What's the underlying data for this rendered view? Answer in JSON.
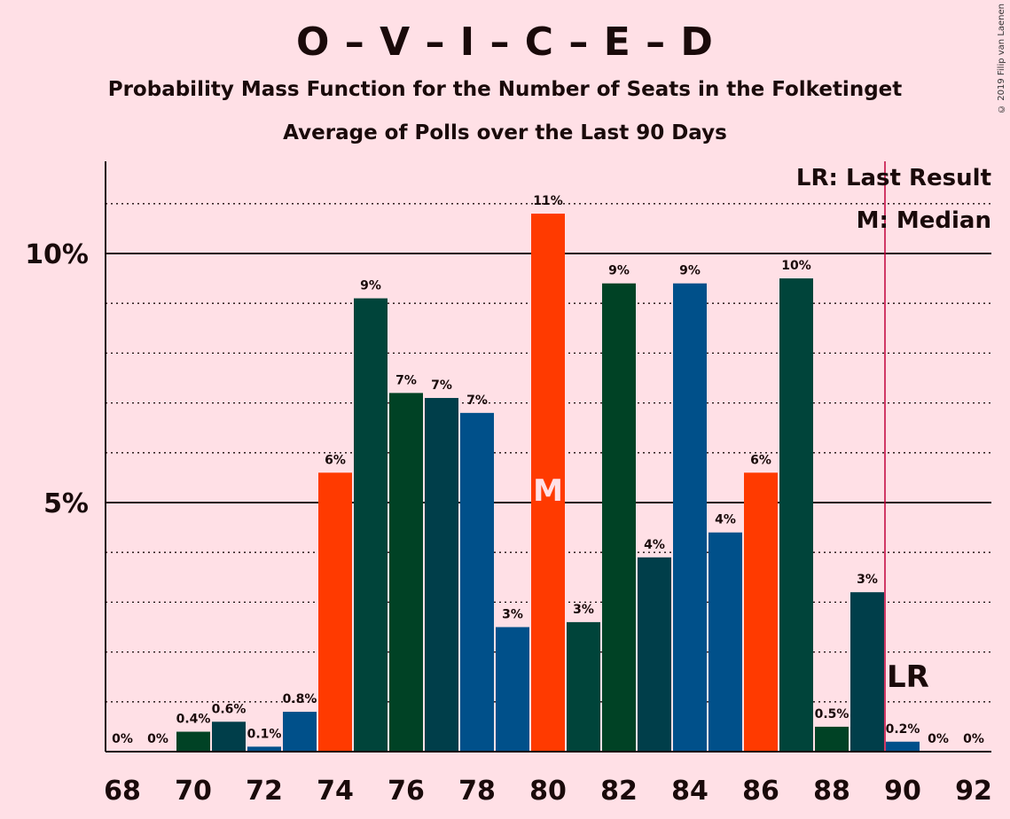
{
  "title": "O – V – I – C – E – D",
  "subtitle": "Probability Mass Function for the Number of Seats in the Folketinget",
  "subtitle2": "Average of Polls over the Last 90 Days",
  "copyright": "© 2019 Filip van Laenen",
  "legend": {
    "last_result": "LR: Last Result",
    "median": "M: Median"
  },
  "markers": {
    "median_letter": "M",
    "last_result_letter": "LR"
  },
  "colors": {
    "background": "#ffe0e6",
    "dark_green": "#004225",
    "teal": "#00443a",
    "dark_teal": "#003e4a",
    "blue": "#00508a",
    "orange": "#ff3a00",
    "last_result_line": "#c0003a"
  },
  "chart_data": {
    "type": "bar",
    "x": [
      68,
      69,
      70,
      71,
      72,
      73,
      74,
      75,
      76,
      77,
      78,
      79,
      80,
      81,
      82,
      83,
      84,
      85,
      86,
      87,
      88,
      89,
      90,
      91,
      92
    ],
    "values": [
      0,
      0,
      0.4,
      0.6,
      0.1,
      0.8,
      5.6,
      9.1,
      7.2,
      7.1,
      6.8,
      2.5,
      10.8,
      2.6,
      9.4,
      3.9,
      9.4,
      4.4,
      5.6,
      9.5,
      0.5,
      3.2,
      0.2,
      0,
      0
    ],
    "data_labels": [
      "0%",
      "0%",
      "0.4%",
      "0.6%",
      "0.1%",
      "0.8%",
      "6%",
      "9%",
      "7%",
      "7%",
      "7%",
      "3%",
      "11%",
      "3%",
      "9%",
      "4%",
      "9%",
      "4%",
      "6%",
      "10%",
      "0.5%",
      "3%",
      "0.2%",
      "0%",
      "0%"
    ],
    "bar_colors": [
      "#00443a",
      "#003e4a",
      "#004225",
      "#003e4a",
      "#00508a",
      "#00508a",
      "#ff3a00",
      "#00443a",
      "#004225",
      "#003e4a",
      "#00508a",
      "#00508a",
      "#ff3a00",
      "#00443a",
      "#004225",
      "#003e4a",
      "#00508a",
      "#00508a",
      "#ff3a00",
      "#00443a",
      "#004225",
      "#003e4a",
      "#00508a",
      "#00508a",
      "#ff3a00"
    ],
    "x_ticks": [
      68,
      70,
      72,
      74,
      76,
      78,
      80,
      82,
      84,
      86,
      88,
      90,
      92
    ],
    "y_ticks": [
      5,
      10
    ],
    "y_tick_labels": [
      "5%",
      "10%"
    ],
    "ylim": [
      0,
      11.8
    ],
    "median": 80,
    "last_result": 89.5,
    "grid": true,
    "legend_placement": "top-right"
  }
}
